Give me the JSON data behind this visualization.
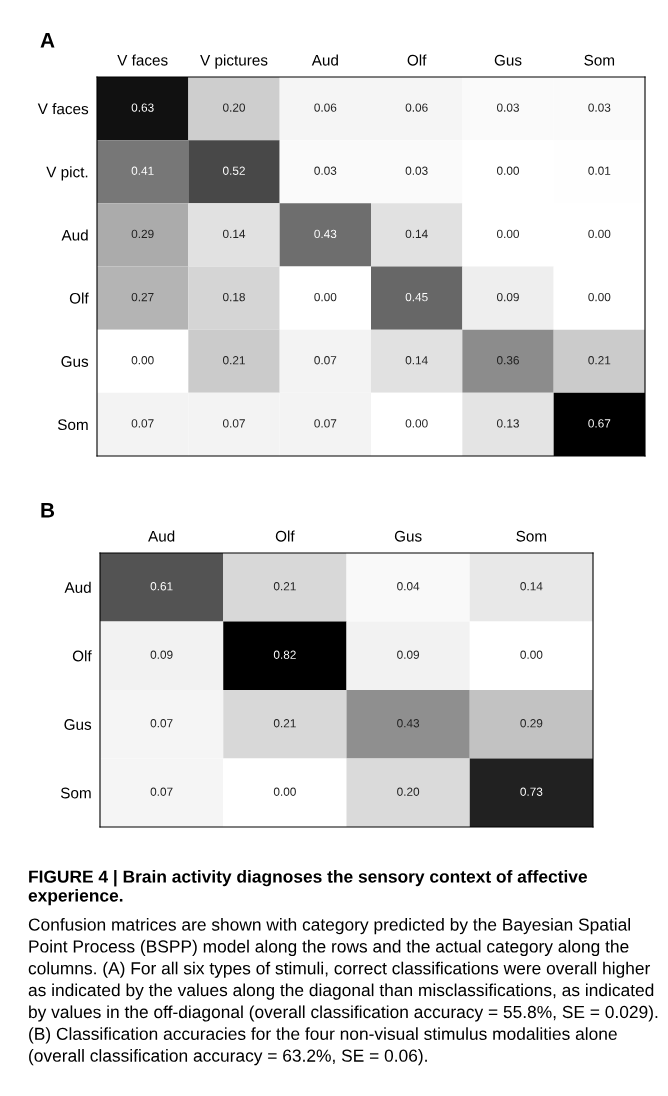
{
  "chart_data": [
    {
      "type": "heatmap",
      "title": "A",
      "categories": [
        "V faces",
        "V pictures",
        "Aud",
        "Olf",
        "Gus",
        "Som"
      ],
      "y_categories": [
        "V faces",
        "V pict.",
        "Aud",
        "Olf",
        "Gus",
        "Som"
      ],
      "cells": [
        [
          0.63,
          0.2,
          0.06,
          0.06,
          0.03,
          0.03
        ],
        [
          0.41,
          0.52,
          0.03,
          0.03,
          0.0,
          0.01
        ],
        [
          0.29,
          0.14,
          0.43,
          0.14,
          0.0,
          0.0
        ],
        [
          0.27,
          0.18,
          0.0,
          0.45,
          0.09,
          0.0
        ],
        [
          0.0,
          0.21,
          0.07,
          0.14,
          0.36,
          0.21
        ],
        [
          0.07,
          0.07,
          0.07,
          0.0,
          0.13,
          0.67
        ]
      ],
      "cell_labels": [
        [
          "0.63",
          "0.20",
          "0.06",
          "0.06",
          "0.03",
          "0.03"
        ],
        [
          "0.41",
          "0.52",
          "0.03",
          "0.03",
          "0.00",
          "0.01"
        ],
        [
          "0.29",
          "0.14",
          "0.43",
          "0.14",
          "0.00",
          "0.00"
        ],
        [
          "0.27",
          "0.18",
          "0.00",
          "0.45",
          "0.09",
          "0.00"
        ],
        [
          "0.00",
          "0.21",
          "0.07",
          "0.14",
          "0.36",
          "0.21"
        ],
        [
          "0.07",
          "0.07",
          "0.07",
          "0.00",
          "0.13",
          "0.67"
        ]
      ]
    },
    {
      "type": "heatmap",
      "title": "B",
      "categories": [
        "Aud",
        "Olf",
        "Gus",
        "Som"
      ],
      "y_categories": [
        "Aud",
        "Olf",
        "Gus",
        "Som"
      ],
      "cells": [
        [
          0.61,
          0.21,
          0.04,
          0.14
        ],
        [
          0.09,
          0.82,
          0.09,
          0.0
        ],
        [
          0.07,
          0.21,
          0.43,
          0.29
        ],
        [
          0.07,
          0.0,
          0.2,
          0.73
        ]
      ],
      "cell_labels": [
        [
          "0.61",
          "0.21",
          "0.04",
          "0.14"
        ],
        [
          "0.09",
          "0.82",
          "0.09",
          "0.00"
        ],
        [
          "0.07",
          "0.21",
          "0.43",
          "0.29"
        ],
        [
          "0.07",
          "0.00",
          "0.20",
          "0.73"
        ]
      ],
      "annotations": [
        "FIGURE 4 | Brain activity diagnoses the sensory context of affective experience.",
        "Confusion matrices are shown with category predicted by the Bayesian Spatial Point Process (BSPP) model along the rows and the actual category along the columns. (A) For all six types of stimuli, correct classifications were overall higher as indicated by the values along the diagonal than misclassifications, as indicated by values in the off-diagonal (overall classification accuracy = 55.8%, SE = 0.029). (B) Classification accuracies for the four non-visual stimulus modalities alone (overall classification accuracy = 63.2%, SE = 0.06)."
      ]
    }
  ]
}
